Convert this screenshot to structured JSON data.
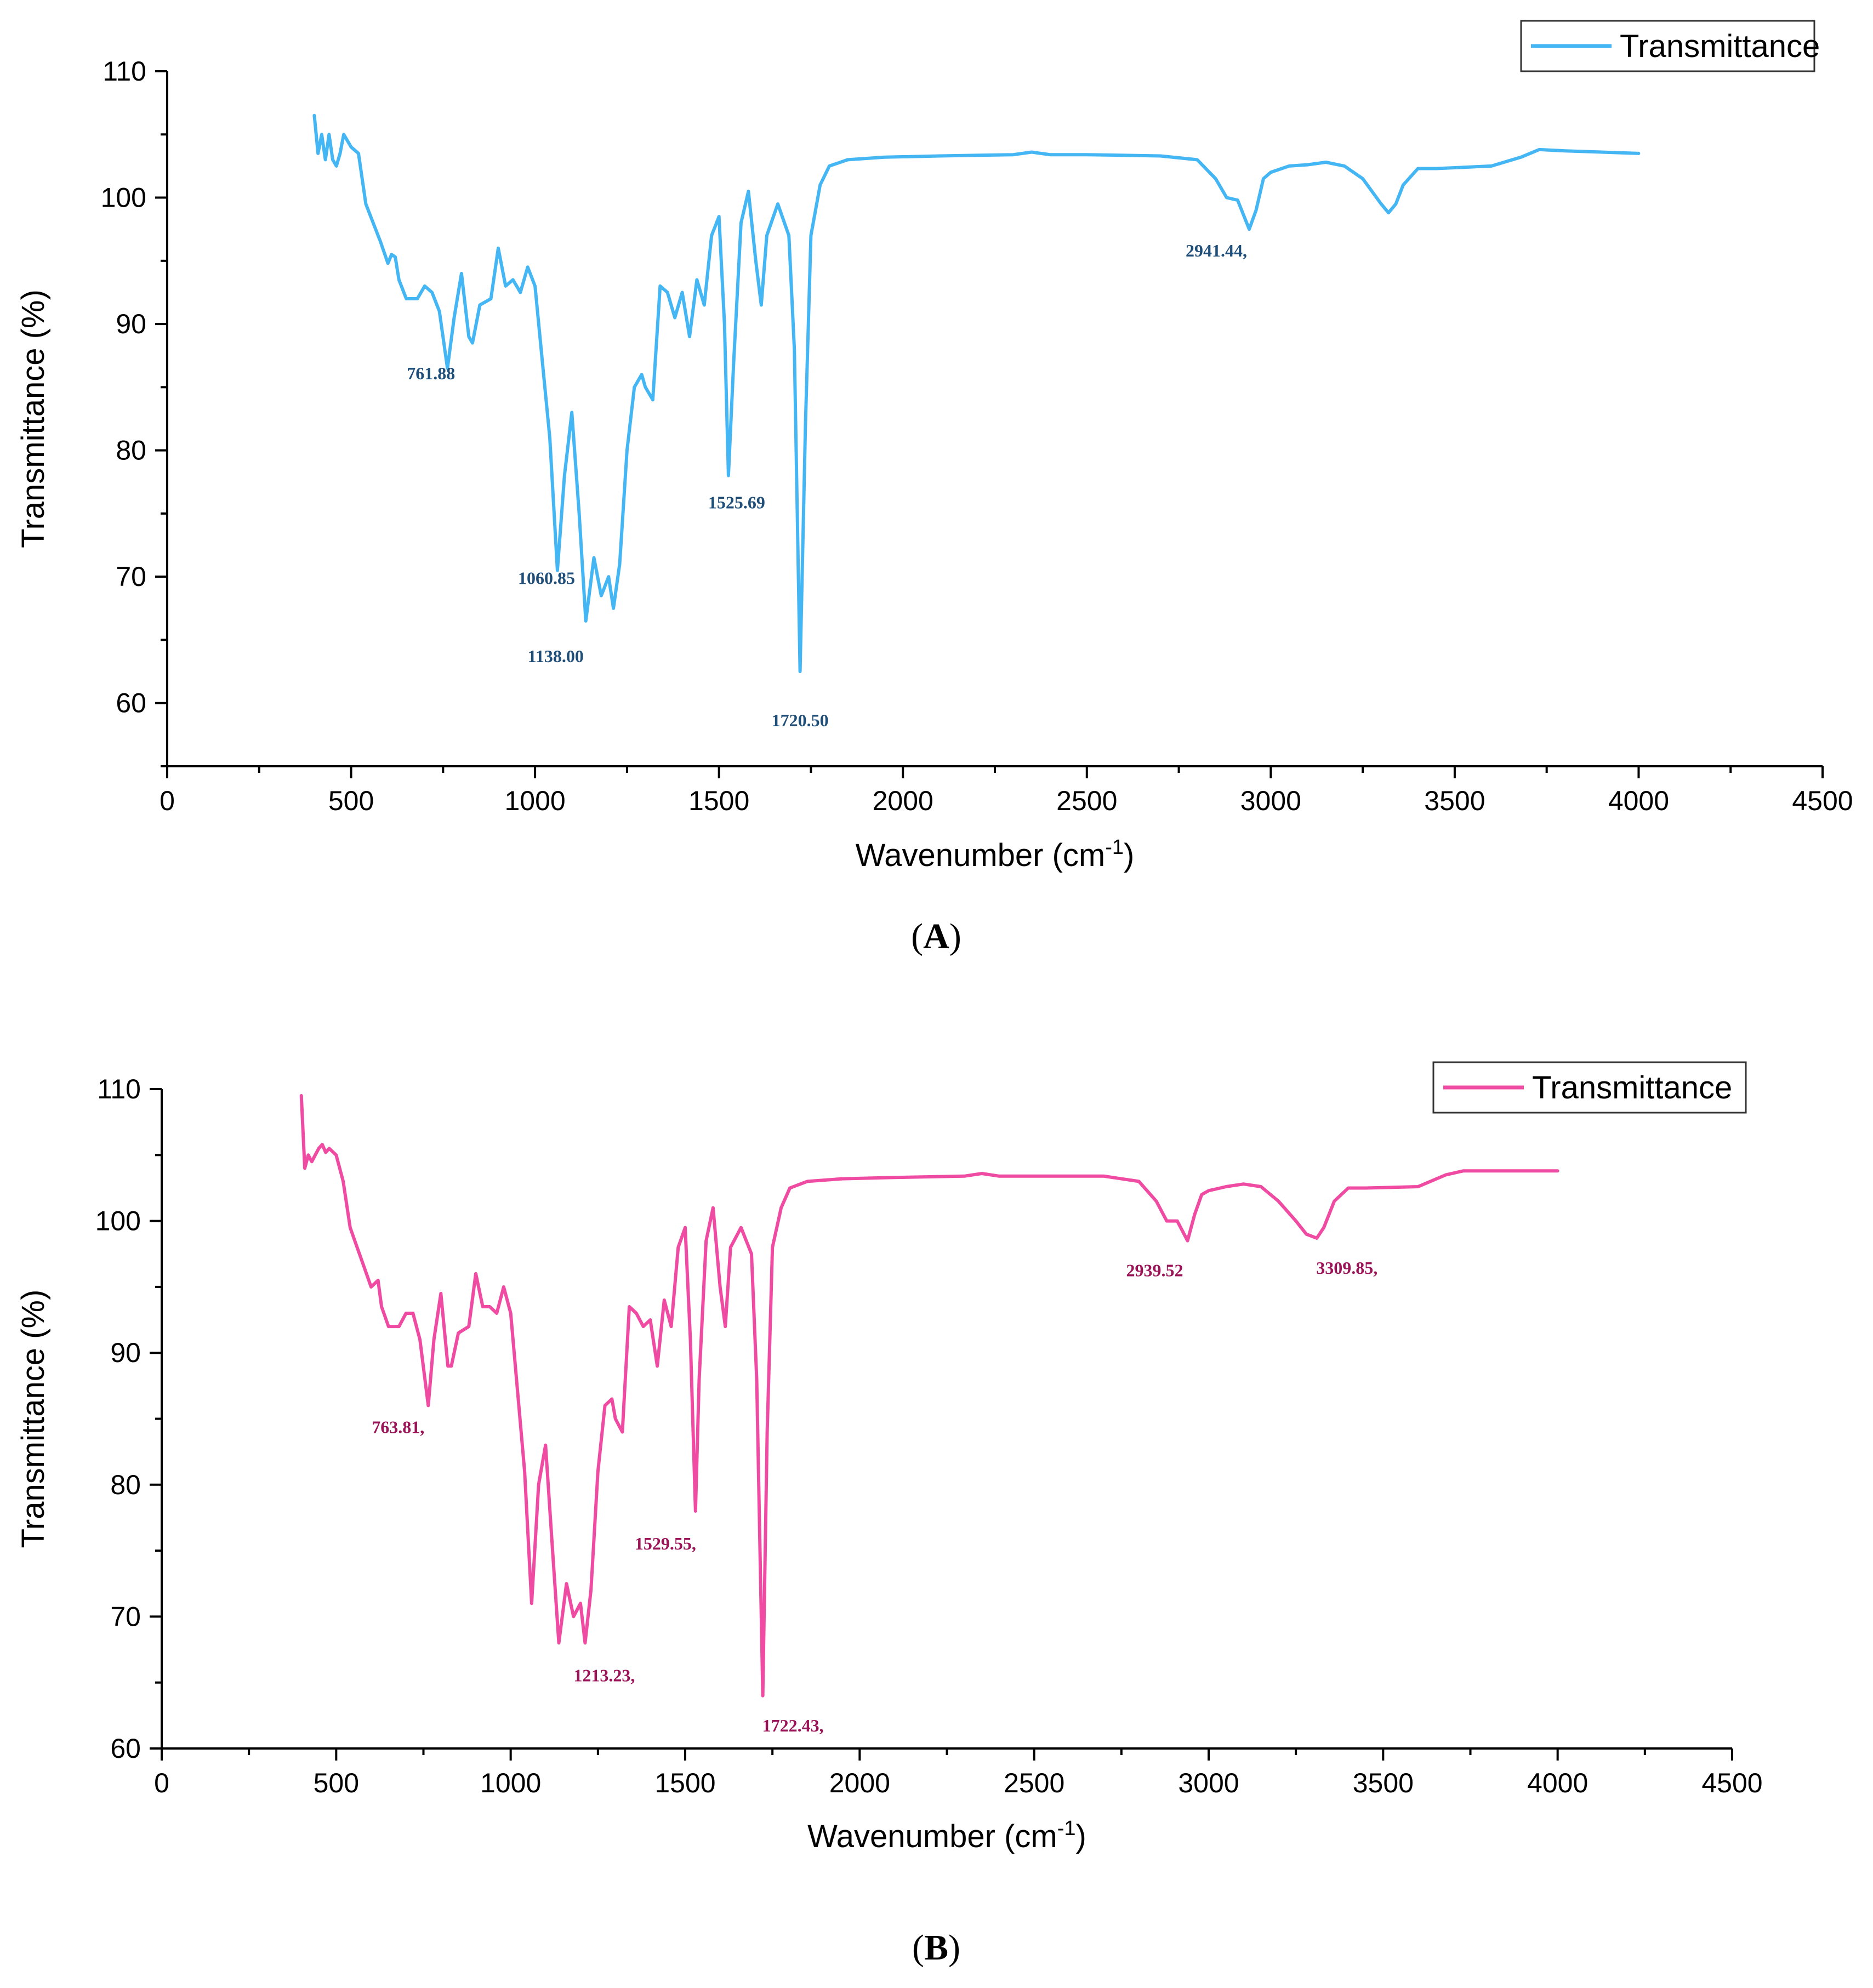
{
  "colors": {
    "panel_a": "#45b6f4",
    "panel_b": "#f04ba2",
    "label_a": "#1f4e79",
    "label_b": "#9c1458"
  },
  "chart_data": [
    {
      "type": "line",
      "panel": "(A)",
      "panel_letter": "A",
      "xlabel": "Wavenumber (cm",
      "xlabel_sup": "-1",
      "xlabel_close": ")",
      "ylabel": "Transmittance (%)",
      "xlim": [
        0,
        4500
      ],
      "ylim": [
        55,
        110
      ],
      "xticks": [
        0,
        500,
        1000,
        1500,
        2000,
        2500,
        3000,
        3500,
        4000,
        4500
      ],
      "yticks": [
        60,
        70,
        80,
        90,
        100,
        110
      ],
      "legend": "Transmittance",
      "series": [
        {
          "name": "Transmittance",
          "x": [
            400,
            410,
            420,
            430,
            440,
            450,
            460,
            470,
            480,
            500,
            520,
            540,
            560,
            580,
            600,
            610,
            620,
            630,
            650,
            680,
            700,
            720,
            740,
            761.88,
            780,
            800,
            820,
            830,
            850,
            880,
            900,
            920,
            940,
            960,
            980,
            1000,
            1020,
            1040,
            1060.85,
            1080,
            1100,
            1120,
            1138,
            1160,
            1180,
            1200,
            1213,
            1230,
            1250,
            1270,
            1290,
            1300,
            1320,
            1340,
            1360,
            1380,
            1400,
            1420,
            1440,
            1460,
            1480,
            1500,
            1515,
            1525.69,
            1540,
            1560,
            1580,
            1600,
            1615,
            1630,
            1660,
            1690,
            1705,
            1720.5,
            1735,
            1750,
            1775,
            1800,
            1850,
            1950,
            2100,
            2300,
            2350,
            2400,
            2500,
            2700,
            2800,
            2850,
            2880,
            2910,
            2941.44,
            2960,
            2980,
            3000,
            3050,
            3100,
            3150,
            3200,
            3250,
            3300,
            3320,
            3340,
            3360,
            3400,
            3450,
            3600,
            3680,
            3730,
            3800,
            4000
          ],
          "y": [
            106.5,
            103.5,
            105,
            103,
            105,
            103,
            102.5,
            103.5,
            105,
            104,
            103.5,
            99.5,
            98,
            96.5,
            94.8,
            95.5,
            95.3,
            93.5,
            92,
            92,
            93,
            92.5,
            91,
            86.5,
            90.5,
            94,
            89,
            88.5,
            91.5,
            92,
            96,
            93,
            93.5,
            92.5,
            94.5,
            93,
            87,
            81,
            70.5,
            78,
            83,
            75,
            66.5,
            71.5,
            68.5,
            70,
            67.5,
            71,
            80,
            85,
            86,
            85,
            84,
            93,
            92.5,
            90.5,
            92.5,
            89,
            93.5,
            91.5,
            97,
            98.5,
            90,
            78,
            87,
            98,
            100.5,
            95,
            91.5,
            97,
            99.5,
            97,
            88,
            62.5,
            82,
            97,
            101,
            102.5,
            103,
            103.2,
            103.3,
            103.4,
            103.6,
            103.4,
            103.4,
            103.3,
            103,
            101.5,
            100,
            99.8,
            97.5,
            99,
            101.5,
            102,
            102.5,
            102.6,
            102.8,
            102.5,
            101.5,
            99.5,
            98.8,
            99.5,
            101,
            102.3,
            102.3,
            102.5,
            103.2,
            103.8,
            103.7,
            103.5
          ]
        }
      ],
      "peak_labels": [
        {
          "text": "761.88",
          "x": 761.88,
          "y": 86.5
        },
        {
          "text": "1060.85",
          "x": 1060.85,
          "y": 70.5
        },
        {
          "text": "1138.00",
          "x": 1138,
          "y": 66.5
        },
        {
          "text": "1525.69",
          "x": 1525.69,
          "y": 78
        },
        {
          "text": "1720.50",
          "x": 1720.5,
          "y": 62.5
        },
        {
          "text": "2941.44,",
          "x": 2941.44,
          "y": 97.5
        }
      ]
    },
    {
      "type": "line",
      "panel": "(B)",
      "panel_letter": "B",
      "xlabel": "Wavenumber (cm",
      "xlabel_sup": "-1",
      "xlabel_close": ")",
      "ylabel": "Transmittance (%)",
      "xlim": [
        0,
        4500
      ],
      "ylim": [
        60,
        110
      ],
      "xticks": [
        0,
        500,
        1000,
        1500,
        2000,
        2500,
        3000,
        3500,
        4000,
        4500
      ],
      "yticks": [
        60,
        70,
        80,
        90,
        100,
        110
      ],
      "legend": "Transmittance",
      "series": [
        {
          "name": "Transmittance",
          "x": [
            400,
            410,
            420,
            430,
            440,
            450,
            460,
            470,
            480,
            500,
            520,
            540,
            560,
            580,
            600,
            620,
            630,
            650,
            680,
            700,
            720,
            740,
            763.81,
            780,
            800,
            820,
            830,
            850,
            880,
            900,
            920,
            940,
            960,
            980,
            1000,
            1020,
            1040,
            1060,
            1080,
            1100,
            1120,
            1138,
            1160,
            1180,
            1200,
            1213.23,
            1230,
            1250,
            1270,
            1290,
            1300,
            1320,
            1340,
            1360,
            1380,
            1400,
            1420,
            1440,
            1460,
            1480,
            1500,
            1515,
            1529.55,
            1540,
            1560,
            1580,
            1600,
            1615,
            1630,
            1660,
            1690,
            1705,
            1722.43,
            1735,
            1750,
            1775,
            1800,
            1850,
            1950,
            2100,
            2300,
            2350,
            2400,
            2500,
            2700,
            2800,
            2850,
            2880,
            2910,
            2939.52,
            2960,
            2980,
            3000,
            3050,
            3100,
            3150,
            3200,
            3250,
            3280,
            3309.85,
            3330,
            3360,
            3400,
            3450,
            3600,
            3680,
            3730,
            3800,
            4000
          ],
          "y": [
            109.5,
            104,
            105,
            104.5,
            105,
            105.5,
            105.8,
            105.2,
            105.5,
            105,
            103,
            99.5,
            98,
            96.5,
            95,
            95.5,
            93.5,
            92,
            92,
            93,
            93,
            91,
            86,
            91,
            94.5,
            89,
            89,
            91.5,
            92,
            96,
            93.5,
            93.5,
            93,
            95,
            93,
            87,
            81,
            71,
            80,
            83,
            75,
            68,
            72.5,
            70,
            71,
            68,
            72,
            81,
            86,
            86.5,
            85,
            84,
            93.5,
            93,
            92,
            92.5,
            89,
            94,
            92,
            98,
            99.5,
            91,
            78,
            88,
            98.5,
            101,
            95,
            92,
            98,
            99.5,
            97.5,
            88,
            64,
            84,
            98,
            101,
            102.5,
            103,
            103.2,
            103.3,
            103.4,
            103.6,
            103.4,
            103.4,
            103.4,
            103,
            101.5,
            100,
            100,
            98.5,
            100.5,
            102,
            102.3,
            102.6,
            102.8,
            102.6,
            101.5,
            100,
            99,
            98.7,
            99.5,
            101.5,
            102.5,
            102.5,
            102.6,
            103.5,
            103.8,
            103.8,
            103.8
          ]
        }
      ],
      "peak_labels": [
        {
          "text": "763.81,",
          "x": 763.81,
          "y": 86
        },
        {
          "text": "1213.23,",
          "x": 1213.23,
          "y": 68
        },
        {
          "text": "1529.55,",
          "x": 1529.55,
          "y": 78
        },
        {
          "text": "1722.43,",
          "x": 1722.43,
          "y": 64
        },
        {
          "text": "2939.52",
          "x": 2939.52,
          "y": 98.5
        },
        {
          "text": "3309.85,",
          "x": 3309.85,
          "y": 98.7
        }
      ]
    }
  ]
}
